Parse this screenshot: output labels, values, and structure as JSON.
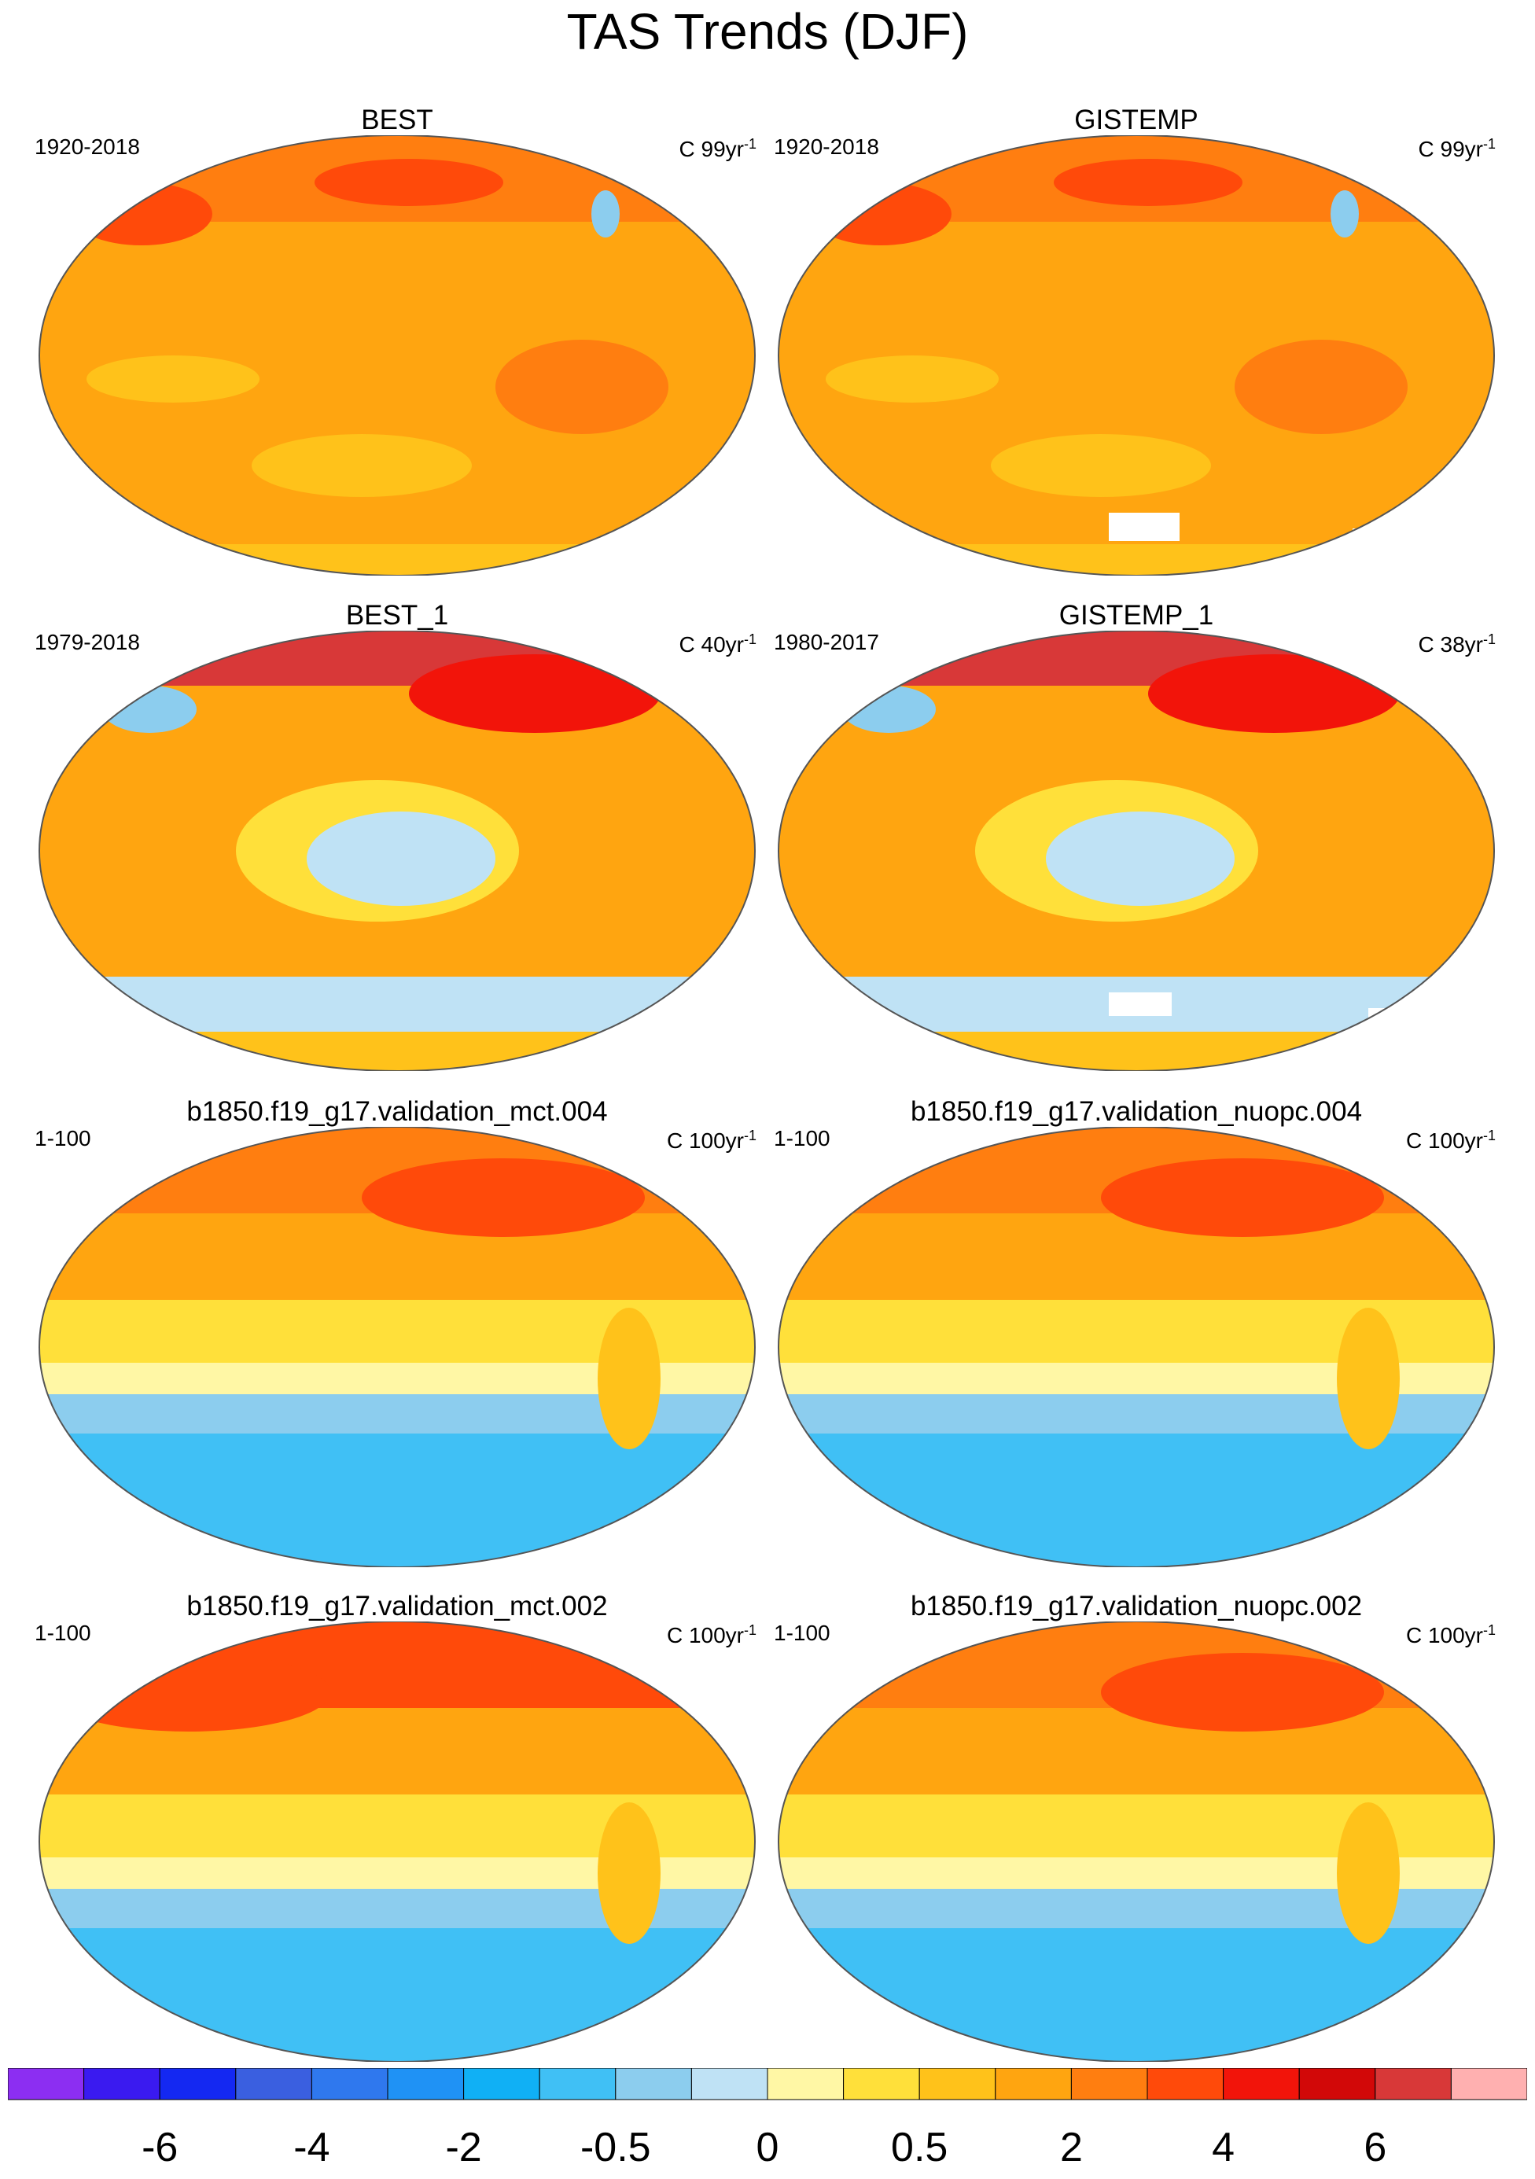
{
  "title": "TAS Trends (DJF)",
  "panels": [
    {
      "title": "BEST",
      "years": "1920-2018",
      "units": "C 99yr",
      "exp": "-1",
      "pattern": "obs_long",
      "color_index": 14
    },
    {
      "title": "GISTEMP",
      "years": "1920-2018",
      "units": "C 99yr",
      "exp": "-1",
      "pattern": "obs_long_mask",
      "color_index": 14
    },
    {
      "title": "BEST_1",
      "years": "1979-2018",
      "units": "C 40yr",
      "exp": "-1",
      "pattern": "obs_recent",
      "color_index": 14
    },
    {
      "title": "GISTEMP_1",
      "years": "1980-2017",
      "units": "C 38yr",
      "exp": "-1",
      "pattern": "obs_recent_mask",
      "color_index": 14
    },
    {
      "title": "b1850.f19_g17.validation_mct.004",
      "years": "1-100",
      "units": "C 100yr",
      "exp": "-1",
      "pattern": "model",
      "color_index": 13
    },
    {
      "title": "b1850.f19_g17.validation_nuopc.004",
      "years": "1-100",
      "units": "C 100yr",
      "exp": "-1",
      "pattern": "model",
      "color_index": 13
    },
    {
      "title": "b1850.f19_g17.validation_mct.002",
      "years": "1-100",
      "units": "C 100yr",
      "exp": "-1",
      "pattern": "model_warm",
      "color_index": 13
    },
    {
      "title": "b1850.f19_g17.validation_nuopc.002",
      "years": "1-100",
      "units": "C 100yr",
      "exp": "-1",
      "pattern": "model",
      "color_index": 13
    }
  ],
  "colorbar": {
    "colors": [
      "#8c2ef2",
      "#3a1af0",
      "#1428f2",
      "#3a5fe0",
      "#2f78ee",
      "#1f92f5",
      "#10b0f5",
      "#40c0f5",
      "#8ccdee",
      "#bfe2f5",
      "#fff7a5",
      "#ffe03a",
      "#ffc21a",
      "#ffa510",
      "#ff7e10",
      "#ff4a0a",
      "#f2140a",
      "#d20808",
      "#d83838",
      "#ffb0b0"
    ],
    "tick_labels": [
      "-6",
      "-4",
      "-2",
      "-0.5",
      "0",
      "0.5",
      "2",
      "4",
      "6"
    ]
  }
}
